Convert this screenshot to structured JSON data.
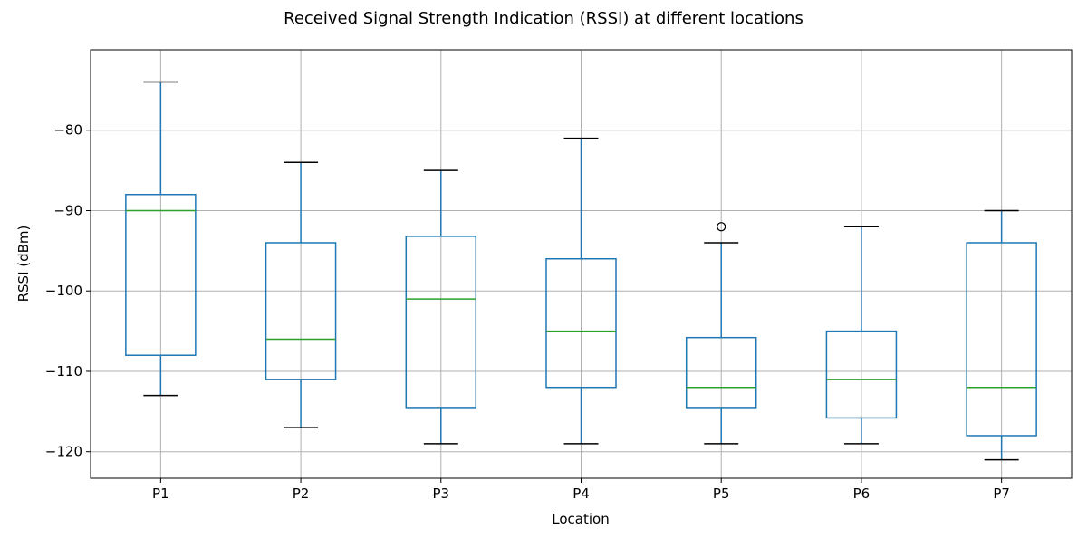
{
  "chart_data": {
    "type": "box",
    "title": "Received Signal Strength Indication (RSSI) at different locations",
    "xlabel": "Location",
    "ylabel": "RSSI (dBm)",
    "ylim": [
      -123.3,
      -70.0
    ],
    "yticks": [
      -80,
      -90,
      -100,
      -110,
      -120
    ],
    "ytick_labels": [
      "−80",
      "−90",
      "−100",
      "−110",
      "−120"
    ],
    "grid": true,
    "categories": [
      "P1",
      "P2",
      "P3",
      "P4",
      "P5",
      "P6",
      "P7"
    ],
    "boxes": [
      {
        "name": "P1",
        "whisker_low": -113,
        "q1": -108,
        "median": -90,
        "q3": -88,
        "whisker_high": -74,
        "outliers": []
      },
      {
        "name": "P2",
        "whisker_low": -117,
        "q1": -111,
        "median": -106,
        "q3": -94,
        "whisker_high": -84,
        "outliers": []
      },
      {
        "name": "P3",
        "whisker_low": -119,
        "q1": -114.5,
        "median": -101,
        "q3": -93.2,
        "whisker_high": -85,
        "outliers": []
      },
      {
        "name": "P4",
        "whisker_low": -119,
        "q1": -112,
        "median": -105,
        "q3": -96,
        "whisker_high": -81,
        "outliers": []
      },
      {
        "name": "P5",
        "whisker_low": -119,
        "q1": -114.5,
        "median": -112,
        "q3": -105.8,
        "whisker_high": -94,
        "outliers": [
          -92
        ]
      },
      {
        "name": "P6",
        "whisker_low": -119,
        "q1": -115.8,
        "median": -111,
        "q3": -105,
        "whisker_high": -92,
        "outliers": []
      },
      {
        "name": "P7",
        "whisker_low": -121,
        "q1": -118,
        "median": -112,
        "q3": -94,
        "whisker_high": -90,
        "outliers": []
      }
    ],
    "colors": {
      "box": "#1f77b4",
      "median": "#2ca02c",
      "whisker": "#1f77b4",
      "cap": "#000000",
      "outlier": "#000000",
      "grid": "#b0b0b0",
      "axis": "#000000"
    }
  }
}
